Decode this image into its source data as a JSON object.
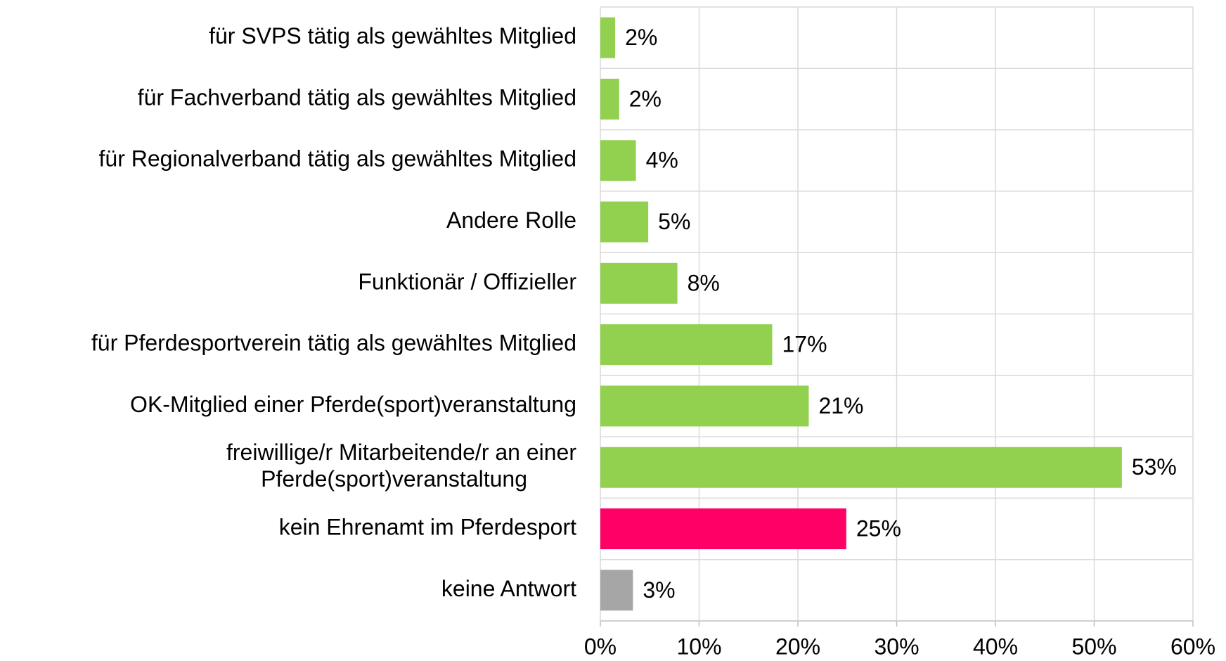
{
  "chart_data": {
    "type": "barh",
    "categories": [
      "für SVPS tätig als gewähltes Mitglied",
      "für Fachverband tätig als gewähltes Mitglied",
      "für Regionalverband tätig als gewähltes Mitglied",
      "Andere Rolle",
      "Funktionär / Offizieller",
      "für Pferdesportverein tätig als gewähltes Mitglied",
      "OK-Mitglied einer Pferde(sport)veranstaltung",
      [
        "freiwillige/r Mitarbeitende/r an einer",
        "Pferde(sport)veranstaltung"
      ],
      "kein Ehrenamt im Pferdesport",
      "keine Antwort"
    ],
    "values": [
      1.5,
      1.9,
      3.6,
      4.85,
      7.8,
      17.4,
      21.1,
      52.8,
      24.9,
      3.3
    ],
    "value_labels": [
      "2%",
      "2%",
      "4%",
      "5%",
      "8%",
      "17%",
      "21%",
      "53%",
      "25%",
      "3%"
    ],
    "colors": [
      "#92d050",
      "#92d050",
      "#92d050",
      "#92d050",
      "#92d050",
      "#92d050",
      "#92d050",
      "#92d050",
      "#ff0066",
      "#a6a6a6"
    ],
    "xlim": [
      0,
      60
    ],
    "xticks": [
      {
        "value": 0,
        "label": "0%"
      },
      {
        "value": 10,
        "label": "10%"
      },
      {
        "value": 20,
        "label": "20%"
      },
      {
        "value": 30,
        "label": "30%"
      },
      {
        "value": 40,
        "label": "40%"
      },
      {
        "value": 50,
        "label": "50%"
      },
      {
        "value": 60,
        "label": "60%"
      }
    ],
    "grid": true
  }
}
